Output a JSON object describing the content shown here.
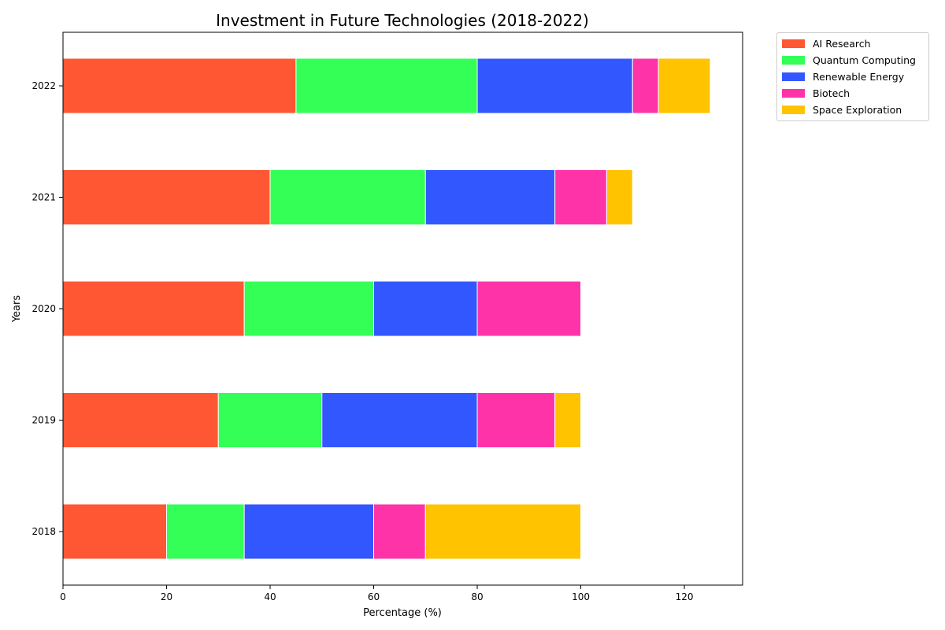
{
  "chart_data": {
    "type": "bar",
    "orientation": "horizontal",
    "stacked": true,
    "title": "Investment in Future Technologies (2018-2022)",
    "xlabel": "Percentage (%)",
    "ylabel": "Years",
    "categories": [
      "2018",
      "2019",
      "2020",
      "2021",
      "2022"
    ],
    "xlim": [
      0,
      131.25
    ],
    "xticks": [
      0,
      20,
      40,
      60,
      80,
      100,
      120
    ],
    "grid": false,
    "legend_position": "outside-top-right",
    "series": [
      {
        "name": "AI Research",
        "color": "#FF5733",
        "values": [
          20,
          30,
          35,
          40,
          45
        ]
      },
      {
        "name": "Quantum Computing",
        "color": "#33FF57",
        "values": [
          15,
          20,
          25,
          30,
          35
        ]
      },
      {
        "name": "Renewable Energy",
        "color": "#3357FF",
        "values": [
          25,
          30,
          20,
          25,
          30
        ]
      },
      {
        "name": "Biotech",
        "color": "#FF33A8",
        "values": [
          10,
          15,
          20,
          10,
          5
        ]
      },
      {
        "name": "Space Exploration",
        "color": "#FFC300",
        "values": [
          30,
          5,
          0,
          5,
          10
        ]
      }
    ]
  }
}
